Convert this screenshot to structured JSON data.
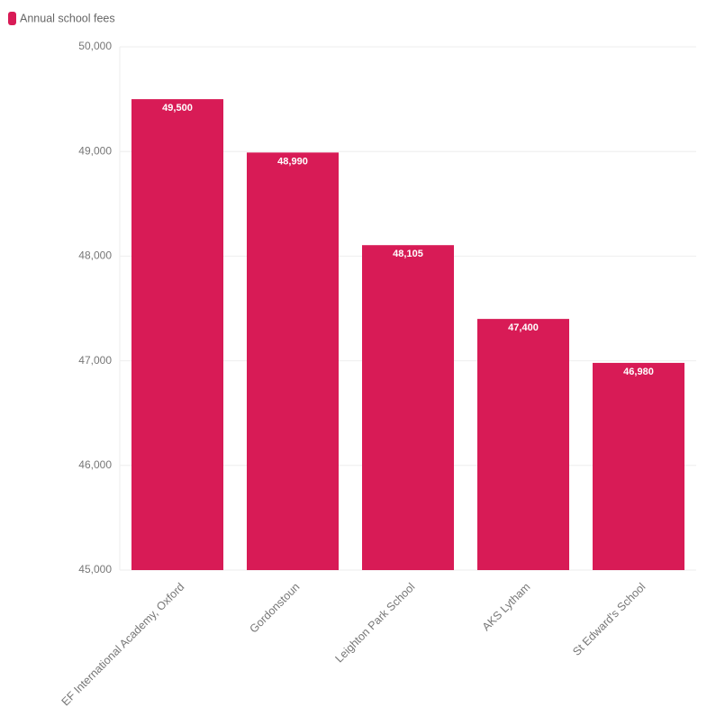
{
  "chart_data": {
    "type": "bar",
    "categories": [
      "EF International Academy, Oxford",
      "Gordonstoun",
      "Leighton Park School",
      "AKS Lytham",
      "St Edward's School"
    ],
    "series": [
      {
        "name": "Annual school fees",
        "color": "#d81b56",
        "values": [
          49500,
          48990,
          48105,
          47400,
          46980
        ],
        "value_labels": [
          "49,500",
          "48,990",
          "48,105",
          "47,400",
          "46,980"
        ]
      }
    ],
    "ylim": [
      45000,
      50000
    ],
    "yticks": [
      {
        "value": 45000,
        "label": "45,000"
      },
      {
        "value": 46000,
        "label": "46,000"
      },
      {
        "value": 47000,
        "label": "47,000"
      },
      {
        "value": 48000,
        "label": "48,000"
      },
      {
        "value": 49000,
        "label": "49,000"
      },
      {
        "value": 50000,
        "label": "50,000"
      }
    ],
    "grid": true,
    "legend": "top-left"
  }
}
